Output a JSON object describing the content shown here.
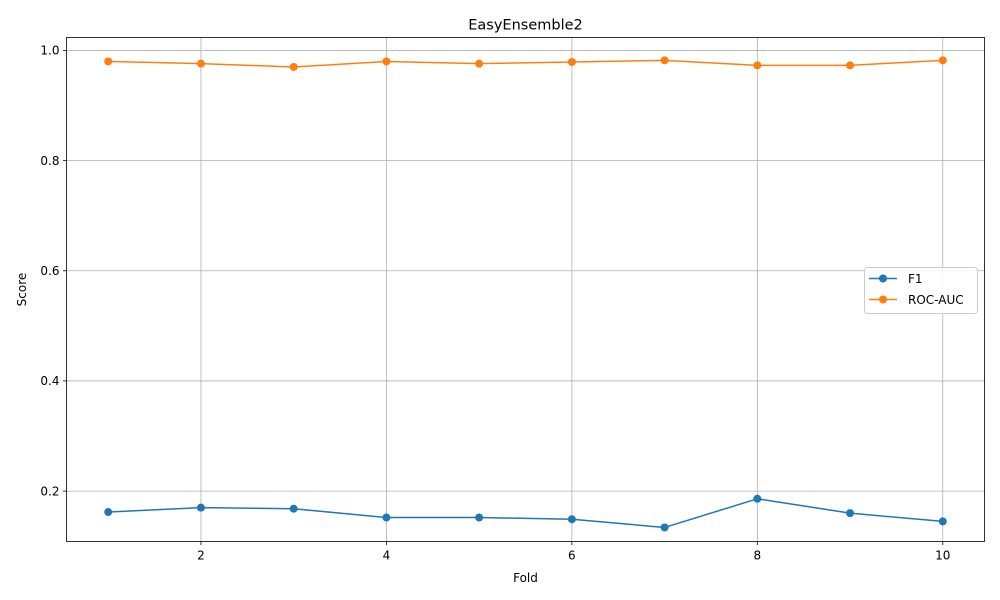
{
  "chart_data": {
    "type": "line",
    "title": "EasyEnsemble2",
    "xlabel": "Fold",
    "ylabel": "Score",
    "x": [
      1,
      2,
      3,
      4,
      5,
      6,
      7,
      8,
      9,
      10
    ],
    "xlim": [
      0.55,
      10.45
    ],
    "ylim": [
      0.1085,
      1.0235
    ],
    "x_ticks": [
      2,
      4,
      6,
      8,
      10
    ],
    "y_ticks": [
      0.2,
      0.4,
      0.6,
      0.8,
      1.0
    ],
    "x_tick_labels": [
      "2",
      "4",
      "6",
      "8",
      "10"
    ],
    "y_tick_labels": [
      "0.2",
      "0.4",
      "0.6",
      "0.8",
      "1.0"
    ],
    "grid": true,
    "legend_position": "center-right",
    "series": [
      {
        "name": "F1",
        "color": "#1f77b4",
        "marker": "circle",
        "values": [
          0.162,
          0.17,
          0.168,
          0.152,
          0.152,
          0.149,
          0.134,
          0.186,
          0.16,
          0.145
        ]
      },
      {
        "name": "ROC-AUC",
        "color": "#ff7f0e",
        "marker": "circle",
        "values": [
          0.98,
          0.976,
          0.97,
          0.98,
          0.976,
          0.979,
          0.982,
          0.973,
          0.973,
          0.982
        ]
      }
    ]
  }
}
